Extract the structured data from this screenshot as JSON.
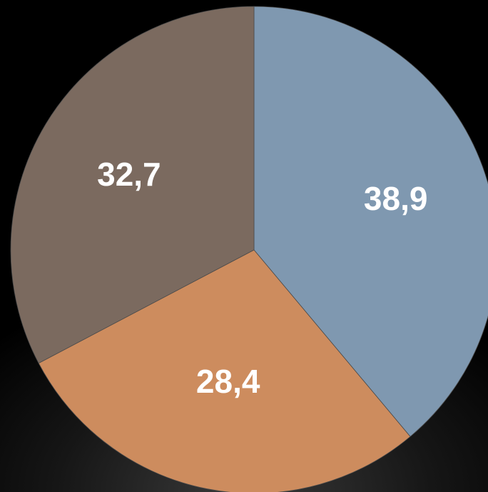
{
  "chart_data": {
    "type": "pie",
    "slices": [
      {
        "label": "38,9",
        "value": 38.9,
        "color": "#7f98b0"
      },
      {
        "label": "28,4",
        "value": 28.4,
        "color": "#cd8c5e"
      },
      {
        "label": "32,7",
        "value": 32.7,
        "color": "#7b6a5f"
      }
    ],
    "start_angle_deg": 0,
    "direction": "clockwise",
    "legend": "none"
  }
}
